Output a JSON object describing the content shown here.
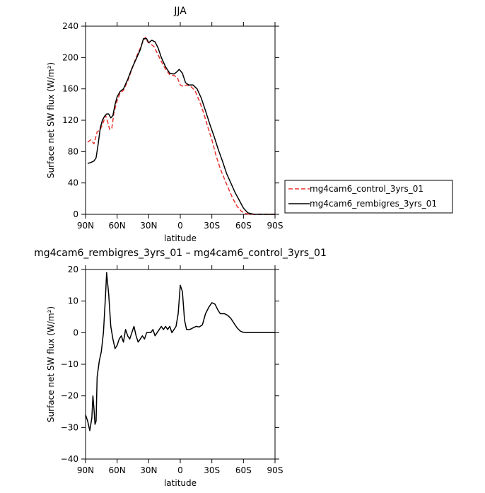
{
  "chart_data": [
    {
      "type": "line",
      "title": "JJA",
      "xlabel": "latitude",
      "ylabel": "Surface net SW flux (W/m²)",
      "xlim": [
        90,
        -90
      ],
      "ylim": [
        0,
        240
      ],
      "x_ticks": [
        90,
        60,
        30,
        0,
        -30,
        -60,
        -90
      ],
      "x_tick_labels": [
        "90N",
        "60N",
        "30N",
        "0",
        "30S",
        "60S",
        "90S"
      ],
      "y_ticks": [
        0,
        40,
        80,
        120,
        160,
        200,
        240
      ],
      "y_tick_labels": [
        "0",
        "40",
        "80",
        "120",
        "160",
        "200",
        "240"
      ],
      "grid": false,
      "legend_position": "right",
      "series": [
        {
          "name": "mg4cam6_control_3yrs_01",
          "color": "#e8322f",
          "dash": "dashed",
          "x": [
            88,
            85,
            82,
            79,
            76,
            73,
            71,
            69,
            67,
            65,
            63,
            60,
            57,
            54,
            50,
            46,
            42,
            38,
            35,
            33,
            31,
            28,
            25,
            22,
            18,
            14,
            10,
            6,
            3,
            0,
            -3,
            -6,
            -10,
            -14,
            -18,
            -22,
            -26,
            -30,
            -34,
            -38,
            -42,
            -46,
            -50,
            -54,
            -58,
            -62,
            -66,
            -70,
            -78,
            -90
          ],
          "y": [
            92,
            95,
            90,
            105,
            108,
            118,
            126,
            118,
            108,
            110,
            130,
            145,
            155,
            158,
            170,
            185,
            200,
            212,
            222,
            226,
            220,
            217,
            214,
            206,
            195,
            185,
            178,
            177,
            175,
            165,
            163,
            165,
            163,
            158,
            145,
            130,
            112,
            95,
            75,
            58,
            45,
            32,
            20,
            10,
            4,
            1,
            0,
            0,
            0,
            0
          ]
        },
        {
          "name": "mg4cam6_rembigres_3yrs_01",
          "color": "#000000",
          "dash": "solid",
          "x": [
            88,
            85,
            82,
            80,
            78,
            76,
            74,
            72,
            70,
            68,
            66,
            64,
            62,
            60,
            57,
            54,
            50,
            46,
            42,
            38,
            35,
            32,
            30,
            27,
            24,
            21,
            18,
            14,
            10,
            6,
            3,
            1,
            -2,
            -5,
            -8,
            -12,
            -16,
            -20,
            -24,
            -28,
            -32,
            -36,
            -40,
            -44,
            -48,
            -52,
            -56,
            -60,
            -64,
            -70,
            -78,
            -90
          ],
          "y": [
            65,
            66,
            68,
            72,
            90,
            110,
            120,
            125,
            128,
            128,
            123,
            126,
            140,
            150,
            157,
            160,
            172,
            186,
            198,
            210,
            224,
            224,
            219,
            222,
            220,
            212,
            200,
            188,
            180,
            179,
            182,
            185,
            180,
            168,
            165,
            165,
            160,
            148,
            132,
            115,
            100,
            83,
            68,
            52,
            40,
            28,
            18,
            8,
            2,
            0,
            0,
            0
          ]
        }
      ]
    },
    {
      "type": "line",
      "title": "mg4cam6_rembigres_3yrs_01 – mg4cam6_control_3yrs_01",
      "xlabel": "latitude",
      "ylabel": "Surface net SW flux (W/m²)",
      "xlim": [
        90,
        -90
      ],
      "ylim": [
        -40,
        20
      ],
      "x_ticks": [
        90,
        60,
        30,
        0,
        -30,
        -60,
        -90
      ],
      "x_tick_labels": [
        "90N",
        "60N",
        "30N",
        "0",
        "30S",
        "60S",
        "90S"
      ],
      "y_ticks": [
        -40,
        -30,
        -20,
        -10,
        0,
        10,
        20
      ],
      "y_tick_labels": [
        "−40",
        "−30",
        "−20",
        "−10",
        "0",
        "10",
        "20"
      ],
      "grid": false,
      "series": [
        {
          "color": "#000000",
          "dash": "solid",
          "x": [
            90,
            88,
            86,
            84,
            83,
            82,
            81,
            80,
            79,
            77,
            75,
            73,
            71,
            70,
            68,
            66,
            64,
            62,
            60,
            58,
            56,
            54,
            52,
            50,
            48,
            46,
            44,
            42,
            40,
            38,
            36,
            34,
            32,
            30,
            28,
            26,
            24,
            22,
            20,
            18,
            16,
            14,
            12,
            10,
            8,
            6,
            4,
            2,
            0,
            -2,
            -4,
            -6,
            -9,
            -12,
            -15,
            -18,
            -21,
            -24,
            -27,
            -30,
            -33,
            -36,
            -38,
            -40,
            -42,
            -45,
            -48,
            -51,
            -54,
            -57,
            -60,
            -63,
            -66,
            -70,
            -78,
            -90
          ],
          "y": [
            -26,
            -28,
            -31,
            -27,
            -20,
            -24,
            -29,
            -28,
            -14,
            -9,
            -6,
            0,
            12,
            19,
            12,
            2,
            -2,
            -5,
            -4,
            -2,
            -1,
            -3,
            1,
            -1,
            -2,
            0,
            2,
            -1,
            -3,
            -2,
            -1,
            -2,
            0,
            0,
            0,
            1,
            -1,
            0,
            1,
            2,
            1,
            2,
            1,
            2,
            0,
            1,
            2,
            6,
            15,
            13,
            4,
            1,
            1,
            1.5,
            2,
            1.8,
            2.5,
            6,
            8,
            9.5,
            9,
            7,
            6,
            6,
            6,
            5.5,
            4.5,
            3,
            1.5,
            0.5,
            0.1,
            0,
            0,
            0,
            0,
            0
          ]
        }
      ]
    }
  ]
}
